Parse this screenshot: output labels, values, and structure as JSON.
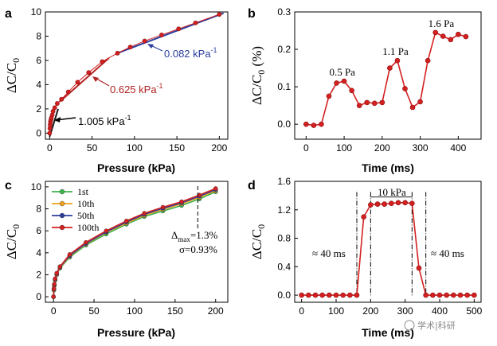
{
  "watermark": "学术|科研",
  "chart_data": [
    {
      "panel": "a",
      "type": "scatter",
      "xlabel": "Pressure (kPa)",
      "ylabel_main": "ΔC/C",
      "ylabel_sub": "0",
      "xlim": [
        -5,
        210
      ],
      "ylim": [
        -0.5,
        10
      ],
      "xticks": [
        "0",
        "50",
        "100",
        "150",
        "200"
      ],
      "yticks": [
        "0",
        "2",
        "4",
        "6",
        "8",
        "10"
      ],
      "x": [
        0,
        0.3,
        0.6,
        1,
        1.5,
        2,
        3,
        4,
        6,
        9,
        14,
        22,
        33,
        46,
        62,
        80,
        95,
        112,
        132,
        152,
        172,
        200
      ],
      "y": [
        0.0,
        0.4,
        0.7,
        0.95,
        1.1,
        1.25,
        1.5,
        1.8,
        2.1,
        2.45,
        2.8,
        3.4,
        4.2,
        5.0,
        5.9,
        6.6,
        7.1,
        7.6,
        8.1,
        8.6,
        9.1,
        9.8
      ],
      "fits": [
        {
          "x": [
            0,
            10
          ],
          "y": [
            -0.3,
            2.0
          ],
          "color": "#1a1a1a"
        },
        {
          "x": [
            12,
            70
          ],
          "y": [
            2.6,
            6.2
          ],
          "color": "#b32222"
        },
        {
          "x": [
            80,
            205
          ],
          "y": [
            6.6,
            9.9
          ],
          "color": "#2b3e9e"
        }
      ],
      "annotations": [
        {
          "text": "1.005 kPa",
          "sup": "-1",
          "color": "#000000"
        },
        {
          "text": "0.625 kPa",
          "sup": "-1",
          "color": "#b32222"
        },
        {
          "text": "0.082 kPa",
          "sup": "-1",
          "color": "#2b3e9e"
        }
      ],
      "color": "#d42020"
    },
    {
      "panel": "b",
      "type": "line",
      "xlabel": "Time (ms)",
      "ylabel_main": "ΔC/C",
      "ylabel_sub": "0",
      "ylabel_unit": " (%)",
      "xlim": [
        -30,
        460
      ],
      "ylim": [
        -0.04,
        0.3
      ],
      "xticks": [
        "0",
        "100",
        "200",
        "300",
        "400"
      ],
      "yticks": [
        "0.0",
        "0.1",
        "0.2",
        "0.3"
      ],
      "x": [
        0,
        20,
        40,
        60,
        80,
        100,
        120,
        140,
        160,
        180,
        200,
        220,
        240,
        260,
        280,
        300,
        320,
        340,
        360,
        380,
        400,
        420
      ],
      "y": [
        0.0,
        -0.003,
        0.0,
        0.075,
        0.11,
        0.115,
        0.09,
        0.05,
        0.058,
        0.056,
        0.058,
        0.15,
        0.17,
        0.095,
        0.045,
        0.06,
        0.17,
        0.245,
        0.235,
        0.226,
        0.24,
        0.234
      ],
      "annotations": [
        {
          "text": "0.5 Pa",
          "x": 95,
          "y": 0.13
        },
        {
          "text": "1.1 Pa",
          "x": 235,
          "y": 0.185
        },
        {
          "text": "1.6 Pa",
          "x": 355,
          "y": 0.26
        }
      ],
      "color": "#d42020"
    },
    {
      "panel": "c",
      "type": "line",
      "xlabel": "Pressure (kPa)",
      "ylabel_main": "ΔC/C",
      "ylabel_sub": "0",
      "xlim": [
        -10,
        215
      ],
      "ylim": [
        -0.5,
        10.5
      ],
      "xticks": [
        "0",
        "50",
        "100",
        "150",
        "200"
      ],
      "yticks": [
        "0",
        "2",
        "4",
        "6",
        "8",
        "10"
      ],
      "x": [
        0,
        0.5,
        1,
        2,
        4,
        8,
        20,
        40,
        65,
        90,
        112,
        135,
        158,
        180,
        200
      ],
      "series": [
        {
          "name": "1st",
          "color": "#3cb44b",
          "y": [
            0.0,
            0.6,
            1.0,
            1.5,
            2.0,
            2.6,
            3.6,
            4.7,
            5.7,
            6.6,
            7.3,
            7.8,
            8.3,
            8.9,
            9.55
          ]
        },
        {
          "name": "10th",
          "color": "#f0a020",
          "y": [
            0.0,
            0.65,
            1.05,
            1.55,
            2.05,
            2.65,
            3.7,
            4.8,
            5.85,
            6.7,
            7.4,
            7.95,
            8.45,
            9.05,
            9.65
          ]
        },
        {
          "name": "50th",
          "color": "#2b3e9e",
          "y": [
            0.0,
            0.7,
            1.1,
            1.6,
            2.1,
            2.7,
            3.75,
            4.85,
            5.9,
            6.8,
            7.5,
            8.05,
            8.55,
            9.15,
            9.75
          ]
        },
        {
          "name": "100th",
          "color": "#d42020",
          "y": [
            0.0,
            0.75,
            1.15,
            1.65,
            2.15,
            2.75,
            3.85,
            4.95,
            6.0,
            6.9,
            7.6,
            8.15,
            8.65,
            9.25,
            9.85
          ]
        }
      ],
      "annotations": [
        {
          "text_main": "Δ",
          "text_sub": "max",
          "text_rest": "=1.3%"
        },
        {
          "text": "σ=0.93%"
        }
      ],
      "marker_x": 178
    },
    {
      "panel": "d",
      "type": "line",
      "xlabel": "Time (ms)",
      "ylabel_main": "ΔC/C",
      "ylabel_sub": "0",
      "xlim": [
        -20,
        520
      ],
      "ylim": [
        -0.1,
        1.6
      ],
      "xticks": [
        "0",
        "100",
        "200",
        "300",
        "400",
        "500"
      ],
      "yticks": [
        "0.0",
        "0.4",
        "0.8",
        "1.2",
        "1.6"
      ],
      "x": [
        0,
        20,
        40,
        60,
        80,
        100,
        120,
        140,
        160,
        180,
        200,
        220,
        240,
        260,
        280,
        300,
        320,
        340,
        360,
        380,
        400,
        420,
        440,
        460,
        480,
        500
      ],
      "y": [
        0.0,
        0.0,
        0.0,
        0.0,
        0.0,
        0.0,
        0.0,
        0.0,
        0.0,
        1.1,
        1.27,
        1.28,
        1.28,
        1.29,
        1.3,
        1.3,
        1.29,
        0.38,
        0.0,
        0.0,
        0.0,
        0.0,
        0.0,
        0.0,
        0.0,
        0.0
      ],
      "vlines": [
        160,
        200,
        320,
        360
      ],
      "annotations": [
        {
          "text": "10 kPa"
        },
        {
          "text": "≈ 40 ms"
        },
        {
          "text": "≈ 40 ms"
        }
      ],
      "color": "#d42020"
    }
  ]
}
